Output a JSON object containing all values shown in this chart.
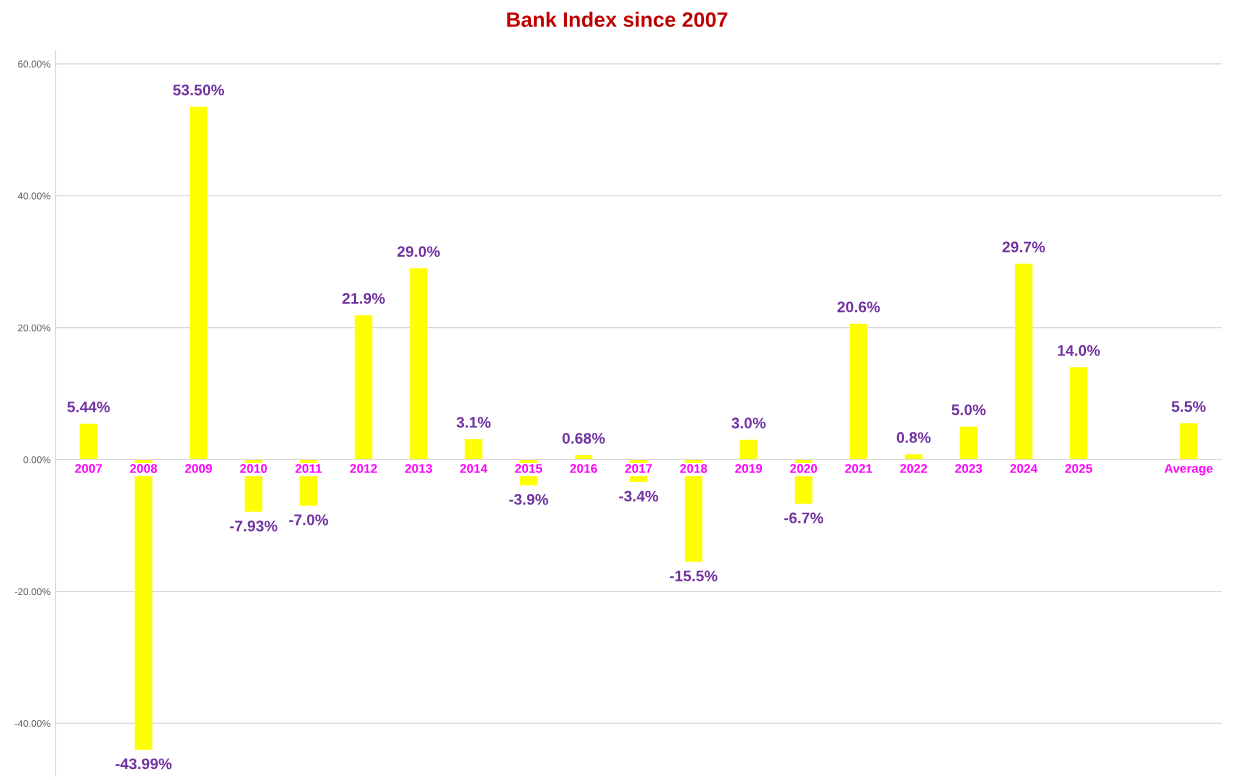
{
  "chart_data": {
    "type": "bar",
    "title": "Bank Index since 2007",
    "categories": [
      "2007",
      "2008",
      "2009",
      "2010",
      "2011",
      "2012",
      "2013",
      "2014",
      "2015",
      "2016",
      "2017",
      "2018",
      "2019",
      "2020",
      "2021",
      "2022",
      "2023",
      "2024",
      "2025",
      null,
      "Average"
    ],
    "series": [
      {
        "color": "#ffff00",
        "values": [
          5.44,
          -43.99,
          53.5,
          -7.93,
          -7.0,
          21.9,
          29.0,
          3.1,
          -3.9,
          0.68,
          -3.4,
          -15.5,
          3.0,
          -6.7,
          20.6,
          0.8,
          5.0,
          29.7,
          14.0,
          null,
          5.5
        ],
        "value_labels": [
          "5.44%",
          "-43.99%",
          "53.50%",
          "-7.93%",
          "-7.0%",
          "21.9%",
          "29.0%",
          "3.1%",
          "-3.9%",
          "0.68%",
          "-3.4%",
          "-15.5%",
          "3.0%",
          "-6.7%",
          "20.6%",
          "0.8%",
          "5.0%",
          "29.7%",
          "14.0%",
          null,
          "5.5%"
        ]
      }
    ],
    "ylim": [
      -48,
      62
    ],
    "yticks": [
      {
        "value": -40,
        "label": "-40.00%"
      },
      {
        "value": -20,
        "label": "-20.00%"
      },
      {
        "value": 0,
        "label": "0.00%"
      },
      {
        "value": 20,
        "label": "20.00%"
      },
      {
        "value": 40,
        "label": "40.00%"
      },
      {
        "value": 60,
        "label": "60.00%"
      }
    ],
    "grid": "y",
    "legend": false
  }
}
